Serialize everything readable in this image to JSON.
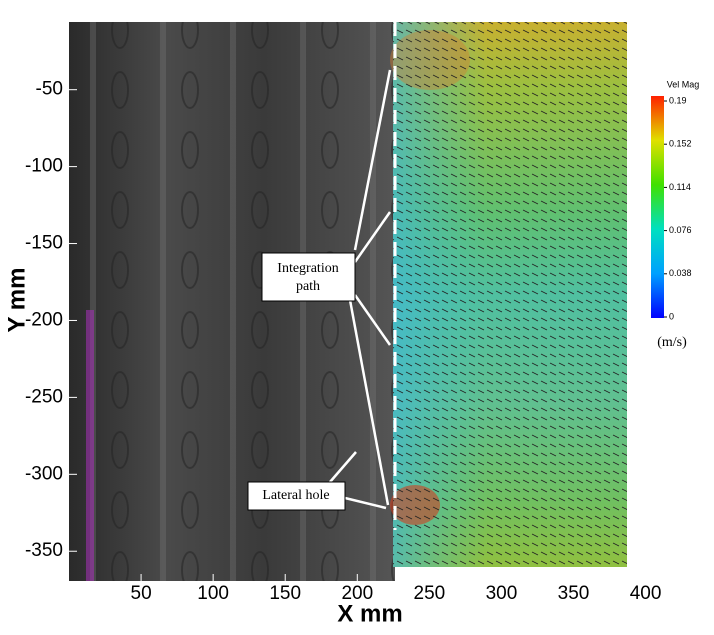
{
  "chart_data": {
    "type": "image",
    "x_label": "X mm",
    "y_label": "Y mm",
    "xlim": [
      0,
      410
    ],
    "xticks": [
      50,
      100,
      150,
      200,
      250,
      300,
      350,
      400
    ],
    "ylim": [
      -370,
      -6
    ],
    "yticks": [
      -50,
      -100,
      -150,
      -200,
      -250,
      -300,
      -350
    ],
    "colorbar": {
      "title": "Vel Mag",
      "unit": "(m/s)",
      "clim": [
        0,
        0.19
      ],
      "ticks": [
        0,
        0.038,
        0.076,
        0.114,
        0.152,
        0.19
      ]
    },
    "annotations": [
      "Integration path",
      "Lateral hole"
    ]
  }
}
